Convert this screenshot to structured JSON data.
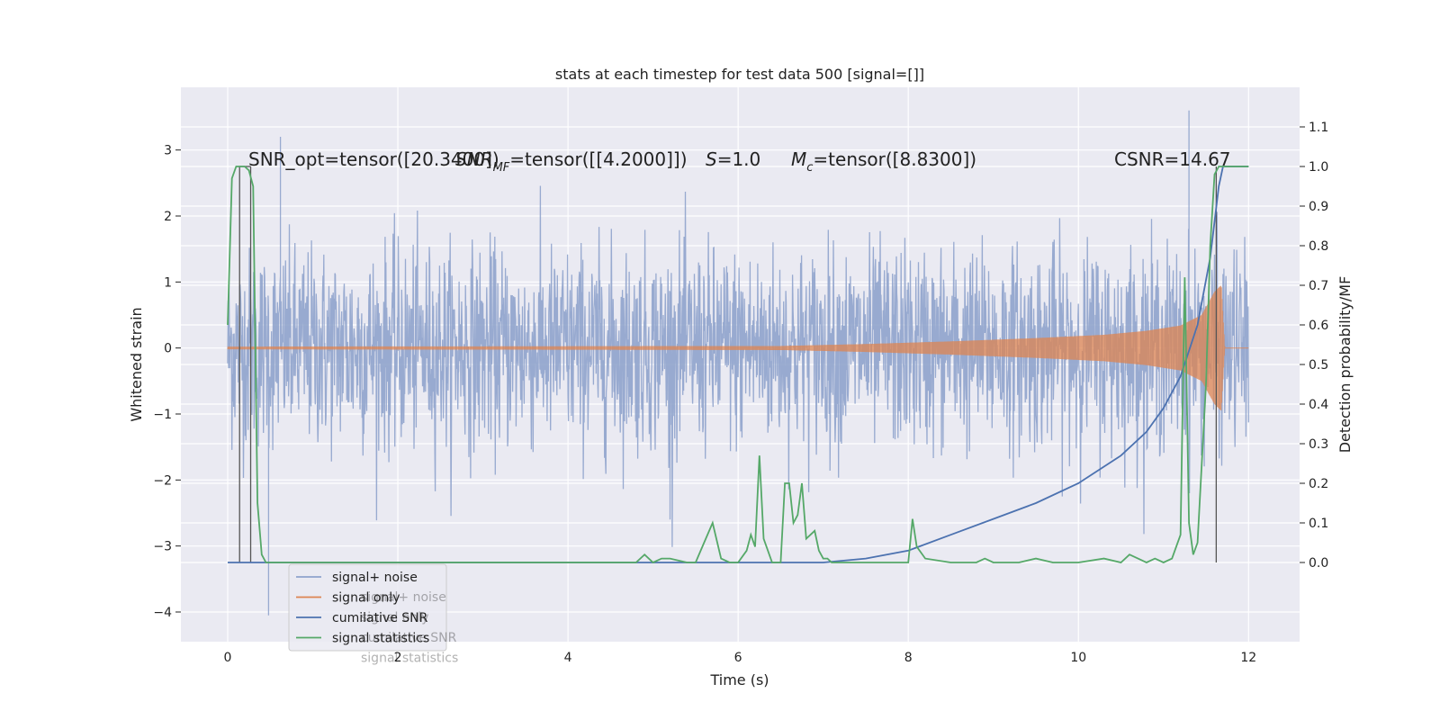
{
  "chart_data": {
    "type": "line",
    "title": "stats at each timestep for test data 500 [signal=[]]",
    "xlabel": "Time (s)",
    "ylabel_left": "Whitened strain",
    "ylabel_right": "Detection probability/MF",
    "xlim": [
      -0.55,
      12.6
    ],
    "ylim_left": [
      -4.45,
      3.95
    ],
    "ylim_right": [
      -0.2,
      1.2
    ],
    "xticks": [
      "0",
      "2",
      "4",
      "6",
      "8",
      "10",
      "12"
    ],
    "xtick_values": [
      0,
      2,
      4,
      6,
      8,
      10,
      12
    ],
    "yticks_left": [
      "−4",
      "−3",
      "−2",
      "−1",
      "0",
      "1",
      "2",
      "3"
    ],
    "ytick_values_left": [
      -4,
      -3,
      -2,
      -1,
      0,
      1,
      2,
      3
    ],
    "yticks_right": [
      "0.0",
      "0.1",
      "0.2",
      "0.3",
      "0.4",
      "0.5",
      "0.6",
      "0.7",
      "0.8",
      "0.9",
      "1.0",
      "1.1"
    ],
    "ytick_values_right": [
      0.0,
      0.1,
      0.2,
      0.3,
      0.4,
      0.5,
      0.6,
      0.7,
      0.8,
      0.9,
      1.0,
      1.1
    ],
    "annotations": {
      "snr_opt": "SNR_opt=tensor([20.3400])",
      "snr_mf_prefix": "SNR",
      "snr_mf_sub": "MF",
      "snr_mf_rest": "=tensor([[4.2000]])",
      "s_label": "S",
      "s_value": "=1.0",
      "mc_label": "M",
      "mc_sub": "c",
      "mc_value": "=tensor([8.8300])",
      "csnr": "CSNR=14.67"
    },
    "vlines": [
      0.14,
      0.27,
      11.62
    ],
    "series": [
      {
        "name": "signal+ noise",
        "axis": "left",
        "color": "#8fa3cc",
        "description": "whitened noise, roughly ±1.5 σ envelope with peaks to 3.6 and -4.1",
        "peaks": [
          [
            0.48,
            -4.05
          ],
          [
            0.62,
            3.2
          ],
          [
            11.3,
            3.6
          ],
          [
            5.2,
            -2.6
          ]
        ]
      },
      {
        "name": "signal only",
        "axis": "left",
        "color": "#dd8452",
        "description": "chirp with amplitude growing toward merger",
        "envelope": [
          [
            0,
            0.02
          ],
          [
            6.5,
            0.03
          ],
          [
            7.5,
            0.06
          ],
          [
            8.5,
            0.1
          ],
          [
            9.5,
            0.15
          ],
          [
            10.3,
            0.2
          ],
          [
            10.8,
            0.26
          ],
          [
            11.2,
            0.34
          ],
          [
            11.45,
            0.5
          ],
          [
            11.6,
            0.85
          ],
          [
            11.68,
            0.95
          ],
          [
            11.72,
            0.0
          ],
          [
            12.0,
            0.0
          ]
        ]
      },
      {
        "name": "cumilative SNR",
        "axis": "right",
        "color": "#4c72b0",
        "x": [
          0,
          6.0,
          7.0,
          7.5,
          8.0,
          8.5,
          9.0,
          9.5,
          10.0,
          10.5,
          10.8,
          11.0,
          11.2,
          11.4,
          11.55,
          11.65,
          11.7,
          12.0
        ],
        "y": [
          0.0,
          0.0,
          0.0,
          0.01,
          0.03,
          0.07,
          0.11,
          0.15,
          0.2,
          0.27,
          0.33,
          0.39,
          0.47,
          0.6,
          0.77,
          0.95,
          1.0,
          1.0
        ]
      },
      {
        "name": "signal statistics",
        "axis": "right",
        "color": "#55a868",
        "x": [
          0.0,
          0.05,
          0.1,
          0.15,
          0.2,
          0.25,
          0.3,
          0.35,
          0.4,
          0.45,
          0.5,
          0.6,
          1.0,
          2.0,
          3.0,
          4.0,
          4.8,
          4.9,
          5.0,
          5.1,
          5.2,
          5.4,
          5.5,
          5.6,
          5.7,
          5.8,
          5.9,
          6.0,
          6.1,
          6.15,
          6.2,
          6.25,
          6.3,
          6.4,
          6.5,
          6.55,
          6.6,
          6.65,
          6.7,
          6.75,
          6.8,
          6.85,
          6.9,
          6.95,
          7.0,
          7.05,
          7.1,
          7.2,
          7.5,
          7.8,
          8.0,
          8.05,
          8.1,
          8.2,
          8.5,
          8.8,
          8.9,
          9.0,
          9.3,
          9.5,
          9.7,
          10.0,
          10.3,
          10.5,
          10.6,
          10.7,
          10.8,
          10.9,
          11.0,
          11.1,
          11.2,
          11.25,
          11.3,
          11.35,
          11.4,
          11.45,
          11.5,
          11.55,
          11.6,
          11.65,
          11.7,
          12.0
        ],
        "y": [
          0.6,
          0.97,
          1.0,
          1.0,
          1.0,
          0.99,
          0.95,
          0.15,
          0.02,
          0.0,
          0.0,
          0.0,
          0.0,
          0.0,
          0.0,
          0.0,
          0.0,
          0.02,
          0.0,
          0.01,
          0.01,
          0.0,
          0.0,
          0.05,
          0.1,
          0.01,
          0.0,
          0.0,
          0.03,
          0.07,
          0.04,
          0.27,
          0.06,
          0.0,
          0.0,
          0.2,
          0.2,
          0.1,
          0.12,
          0.2,
          0.06,
          0.07,
          0.08,
          0.03,
          0.01,
          0.01,
          0.0,
          0.0,
          0.0,
          0.0,
          0.0,
          0.11,
          0.04,
          0.01,
          0.0,
          0.0,
          0.01,
          0.0,
          0.0,
          0.01,
          0.0,
          0.0,
          0.01,
          0.0,
          0.02,
          0.01,
          0.0,
          0.01,
          0.0,
          0.01,
          0.07,
          0.72,
          0.1,
          0.02,
          0.05,
          0.25,
          0.45,
          0.8,
          0.98,
          1.0,
          1.0,
          1.0
        ]
      }
    ],
    "legend": {
      "placement": "lower-left",
      "entries": [
        "signal+ noise",
        "signal only",
        "cumilative SNR",
        "signal statistics"
      ],
      "ghost_entries": [
        "signal+ noise",
        "signal only",
        "cumilative SNR",
        "signal statistics"
      ]
    },
    "grid": true,
    "colors": {
      "plot_bg": "#eaeaf2",
      "grid": "#ffffff",
      "vline": "#555555"
    }
  }
}
